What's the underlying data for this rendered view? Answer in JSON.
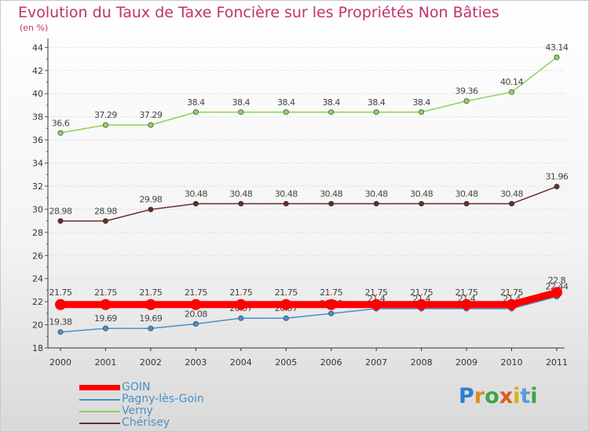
{
  "header": {
    "title": "Evolution du Taux de Taxe Foncière sur les Propriétés Non Bâties",
    "subtitle": "(en %)"
  },
  "chart_data": {
    "type": "line",
    "title": "Evolution du Taux de Taxe Foncière sur les Propriétés Non Bâties",
    "subtitle": "(en %)",
    "xlabel": "",
    "ylabel": "",
    "categories": [
      "2000",
      "2001",
      "2002",
      "2003",
      "2004",
      "2005",
      "2006",
      "2007",
      "2008",
      "2009",
      "2010",
      "2011"
    ],
    "y_ticks": [
      "18",
      "20",
      "22",
      "24",
      "26",
      "28",
      "30",
      "32",
      "34",
      "36",
      "38",
      "40",
      "42",
      "44"
    ],
    "ylim": [
      18,
      44.5
    ],
    "grid": "horizontal",
    "legend_position": "bottom-left",
    "series": [
      {
        "name": "GOIN",
        "color": "#ff0000",
        "values": [
          21.75,
          21.75,
          21.75,
          21.75,
          21.75,
          21.75,
          21.75,
          21.75,
          21.75,
          21.75,
          21.75,
          22.8
        ],
        "labels": [
          "21.75",
          "21.75",
          "21.75",
          "21.75",
          "21.75",
          "21.75",
          "21.75",
          "21.75",
          "21.75",
          "21.75",
          "21.75",
          "22.8"
        ]
      },
      {
        "name": "Pagny-lès-Goin",
        "color": "#4a90c8",
        "values": [
          19.38,
          19.69,
          19.69,
          20.08,
          20.57,
          20.57,
          20.98,
          21.4,
          21.4,
          21.4,
          21.4,
          22.44
        ],
        "labels": [
          "19.38",
          "19.69",
          "19.69",
          "20.08",
          "20.57",
          "20.57",
          "20.98",
          "21.4",
          "21.4",
          "21.4",
          "21.4",
          "22.44"
        ]
      },
      {
        "name": "Verny",
        "color": "#8dd25a",
        "values": [
          36.6,
          37.29,
          37.29,
          38.4,
          38.4,
          38.4,
          38.4,
          38.4,
          38.4,
          39.36,
          40.14,
          43.14
        ],
        "labels": [
          "36.6",
          "37.29",
          "37.29",
          "38.4",
          "38.4",
          "38.4",
          "38.4",
          "38.4",
          "38.4",
          "39.36",
          "40.14",
          "43.14"
        ]
      },
      {
        "name": "Chérisey",
        "color": "#6b2a2a",
        "values": [
          28.98,
          28.98,
          29.98,
          30.48,
          30.48,
          30.48,
          30.48,
          30.48,
          30.48,
          30.48,
          30.48,
          31.96
        ],
        "labels": [
          "28.98",
          "28.98",
          "29.98",
          "30.48",
          "30.48",
          "30.48",
          "30.48",
          "30.48",
          "30.48",
          "30.48",
          "30.48",
          "31.96"
        ]
      }
    ]
  },
  "legend": {
    "items": [
      {
        "label": "GOIN",
        "color": "#ff0000"
      },
      {
        "label": "Pagny-lès-Goin",
        "color": "#4a90c8"
      },
      {
        "label": "Verny",
        "color": "#8dd25a"
      },
      {
        "label": "Chérisey",
        "color": "#6b2a2a"
      }
    ]
  },
  "logo": {
    "text": "Proxiti",
    "letters": [
      "P",
      "r",
      "o",
      "x",
      "i",
      "t",
      "i"
    ],
    "colors": [
      "#2a7fd0",
      "#e08a1e",
      "#3aa64a",
      "#e05a1e",
      "#d4b21a",
      "#5a9ad8",
      "#3aa64a"
    ]
  }
}
